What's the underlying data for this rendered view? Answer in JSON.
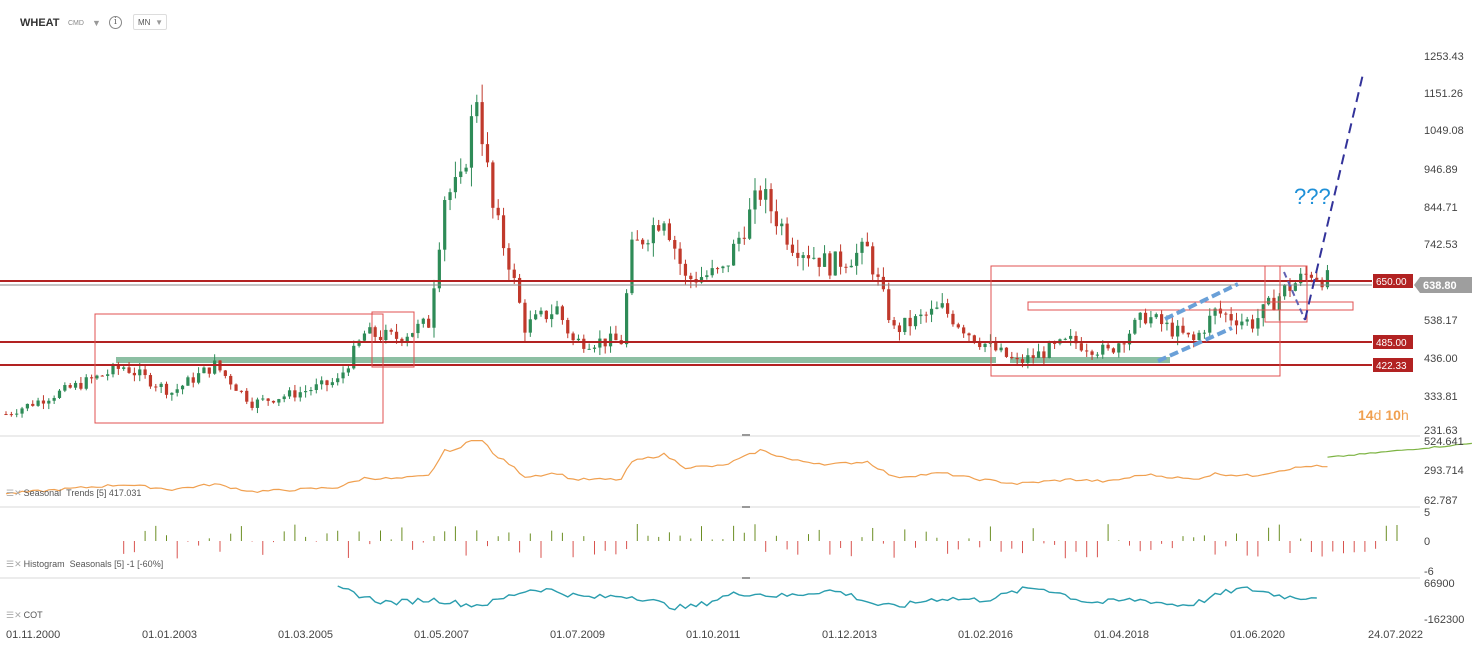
{
  "header": {
    "symbol": "WHEAT",
    "exchange": "CMD",
    "info_glyph": "i",
    "timeframe": "MN",
    "icons": [
      "chevron-down-icon",
      "info-icon"
    ]
  },
  "annotation_text": "???",
  "countdown": {
    "days": "14",
    "d": "d",
    "hours": "10",
    "h": "h"
  },
  "colors": {
    "up": "#2e8b57",
    "down": "#c0392b",
    "level": "#b22222",
    "box": "#e05050",
    "trend": "#33339a",
    "seasonal_orange": "#f0a050",
    "seasonal_green": "#7cb342",
    "cot": "#2a9dae",
    "question": "#1e90d8",
    "price_tag": "#9e9e9e"
  },
  "price_axis": {
    "ticks": [
      "1253.43",
      "1151.26",
      "1049.08",
      "946.89",
      "844.71",
      "742.53",
      "538.17",
      "436.00",
      "333.81",
      "231.63"
    ]
  },
  "levels": [
    {
      "value": 650.0,
      "label": "650.00"
    },
    {
      "value": 485.0,
      "label": "485.00"
    },
    {
      "value": 422.33,
      "label": "422.33"
    }
  ],
  "current_price": {
    "value": 638.8,
    "label": "638.80"
  },
  "x_axis": {
    "dates": [
      "01.11.2000",
      "01.01.2003",
      "01.03.2005",
      "01.05.2007",
      "01.07.2009",
      "01.10.2011",
      "01.12.2013",
      "01.02.2016",
      "01.04.2018",
      "01.06.2020",
      "24.07.2022"
    ]
  },
  "seasonal": {
    "label_title": "Seasonal",
    "label_params": "Trends [5] 417.031",
    "ticks": [
      "524.641",
      "293.714",
      "62.787"
    ]
  },
  "histogram": {
    "label_title": "Histogram",
    "label_params": "Seasonals [5] -1 [-60%]",
    "ticks": [
      "5",
      "0",
      "-6"
    ]
  },
  "cot": {
    "label_title": "COT",
    "ticks": [
      "66900",
      "-162300"
    ]
  },
  "chart_data": {
    "type": "candlestick",
    "title": "WHEAT",
    "timeframe": "MN",
    "x_start": "2000-11",
    "x_end": "2022-07",
    "ylim": [
      231.63,
      1253.43
    ],
    "y_ticks": [
      1253.43,
      1151.26,
      1049.08,
      946.89,
      844.71,
      742.53,
      538.17,
      436.0,
      333.81,
      231.63
    ],
    "horizontal_levels": [
      650.0,
      485.0,
      422.33
    ],
    "last_price": 638.8,
    "close_path_approx": [
      {
        "date": "2000-11",
        "close": 270
      },
      {
        "date": "2002-09",
        "close": 400
      },
      {
        "date": "2003-06",
        "close": 330
      },
      {
        "date": "2004-02",
        "close": 405
      },
      {
        "date": "2004-09",
        "close": 300
      },
      {
        "date": "2005-06",
        "close": 330
      },
      {
        "date": "2006-01",
        "close": 360
      },
      {
        "date": "2006-06",
        "close": 490
      },
      {
        "date": "2006-12",
        "close": 480
      },
      {
        "date": "2007-06",
        "close": 520
      },
      {
        "date": "2007-09",
        "close": 870
      },
      {
        "date": "2007-12",
        "close": 900
      },
      {
        "date": "2008-03",
        "close": 1150
      },
      {
        "date": "2008-06",
        "close": 830
      },
      {
        "date": "2008-09",
        "close": 690
      },
      {
        "date": "2008-12",
        "close": 510
      },
      {
        "date": "2009-06",
        "close": 560
      },
      {
        "date": "2009-09",
        "close": 470
      },
      {
        "date": "2010-06",
        "close": 470
      },
      {
        "date": "2010-08",
        "close": 720
      },
      {
        "date": "2011-02",
        "close": 820
      },
      {
        "date": "2011-06",
        "close": 640
      },
      {
        "date": "2012-01",
        "close": 660
      },
      {
        "date": "2012-08",
        "close": 880
      },
      {
        "date": "2013-02",
        "close": 740
      },
      {
        "date": "2013-09",
        "close": 680
      },
      {
        "date": "2014-04",
        "close": 720
      },
      {
        "date": "2014-09",
        "close": 500
      },
      {
        "date": "2015-06",
        "close": 560
      },
      {
        "date": "2015-12",
        "close": 480
      },
      {
        "date": "2016-08",
        "close": 410
      },
      {
        "date": "2017-06",
        "close": 470
      },
      {
        "date": "2018-01",
        "close": 440
      },
      {
        "date": "2018-08",
        "close": 540
      },
      {
        "date": "2019-05",
        "close": 470
      },
      {
        "date": "2019-09",
        "close": 550
      },
      {
        "date": "2020-04",
        "close": 520
      },
      {
        "date": "2020-10",
        "close": 610
      },
      {
        "date": "2021-03",
        "close": 660
      },
      {
        "date": "2021-06",
        "close": 638.8
      }
    ],
    "forecast_text": "???",
    "seasonal_ylim": [
      62.787,
      524.641
    ],
    "histogram_ylim": [
      -6,
      5
    ],
    "cot_ylim": [
      -162300,
      66900
    ]
  }
}
